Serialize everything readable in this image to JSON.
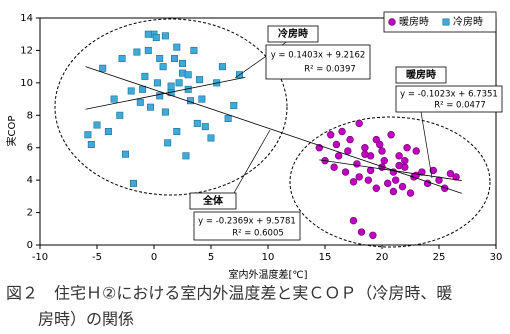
{
  "chart_data": {
    "type": "scatter",
    "xlabel": "室内外温度差[℃]",
    "ylabel": "実COP",
    "xlim": [
      -10,
      30
    ],
    "xticks": [
      -10,
      -5,
      0,
      5,
      10,
      15,
      20,
      25,
      30
    ],
    "ylim": [
      0,
      14
    ],
    "yticks": [
      0,
      2,
      4,
      6,
      8,
      10,
      12,
      14
    ],
    "grid": false,
    "legend": "upper right",
    "series": [
      {
        "name": "暖房時",
        "color": "#c000c0",
        "marker": "circle",
        "x": [
          14.5,
          15,
          15.5,
          15.8,
          16,
          16.2,
          16.5,
          16.8,
          17,
          17.2,
          17.5,
          17.8,
          18,
          18.2,
          18.5,
          18.8,
          19,
          19.2,
          19.5,
          19.8,
          20,
          20.2,
          20.5,
          20.8,
          21,
          21.2,
          21.5,
          21.8,
          22,
          22.2,
          22.5,
          22.8,
          23,
          23.5,
          24,
          24.5,
          25,
          25.5,
          26,
          26.5,
          18,
          18.5,
          19,
          20,
          21,
          22,
          23,
          17.5,
          19.5,
          21.5
        ],
        "values": [
          6,
          5.2,
          6.8,
          4.8,
          6.2,
          5.5,
          7,
          4.5,
          5.8,
          6.5,
          1.5,
          5,
          4.2,
          0.8,
          6,
          4,
          5.5,
          0.6,
          3.5,
          6.2,
          4.8,
          5.2,
          3.8,
          6.8,
          4.5,
          4,
          5.5,
          3.6,
          4.8,
          6,
          3.2,
          4.2,
          5.8,
          4.5,
          3.8,
          4.6,
          4,
          3.5,
          4.4,
          4.2,
          7.5,
          5.6,
          4.6,
          5.8,
          3.3,
          5.2,
          4.3,
          3.9,
          6.5,
          4.9
        ]
      },
      {
        "name": "冷房時",
        "color": "#3fa9d8",
        "marker": "square",
        "x": [
          -5.8,
          -5.5,
          -5,
          -4.5,
          -4,
          -3.5,
          -3,
          -2.8,
          -2.5,
          -2,
          -1.8,
          -1.5,
          -1,
          -0.8,
          -0.5,
          -0.3,
          0,
          0.2,
          0.5,
          0.8,
          1,
          1.2,
          1.5,
          1.8,
          2,
          2.2,
          2.5,
          2.8,
          3,
          3.2,
          3.5,
          3.8,
          4,
          4.2,
          4.5,
          5,
          5.5,
          6,
          6.5,
          7,
          7.5,
          0.3,
          1,
          1.5,
          2.5,
          -1.2,
          0.5,
          2,
          3,
          -0.5
        ],
        "values": [
          6.8,
          6.2,
          7.4,
          10.9,
          7,
          9,
          8,
          11.5,
          5.6,
          9.5,
          3.8,
          11.9,
          9.6,
          10.4,
          12,
          8.5,
          13,
          12.8,
          9.2,
          11,
          12.9,
          6.3,
          9.8,
          11.5,
          7,
          10,
          10.6,
          5.5,
          10.5,
          8.9,
          12,
          7.5,
          10.2,
          9,
          7.3,
          6.6,
          10,
          11,
          7.8,
          8.6,
          10.5,
          10,
          8.2,
          9.4,
          11.2,
          8.8,
          11.5,
          12.2,
          9.6,
          13
        ]
      }
    ],
    "trendlines": [
      {
        "name": "冷房時",
        "slope": 0.1403,
        "intercept": 9.2162,
        "x_range": [
          -6,
          8
        ],
        "equation": "y = 0.1403x + 9.2162",
        "r2": "R² = 0.0397"
      },
      {
        "name": "暖房時",
        "slope": -0.1023,
        "intercept": 6.7351,
        "x_range": [
          14.5,
          27
        ],
        "equation": "y = -0.1023x + 6.7351",
        "r2": "R² = 0.0477"
      },
      {
        "name": "全体",
        "slope": -0.2369,
        "intercept": 9.5781,
        "x_range": [
          -6,
          27
        ],
        "equation": "y = -0.2369x + 9.5781",
        "r2": "R² = 0.6005"
      }
    ],
    "caption": [
      "図２　住宅Ｈ②における室内外温度差と実ＣＯＰ（冷房時、暖",
      "房時）の関係"
    ]
  }
}
